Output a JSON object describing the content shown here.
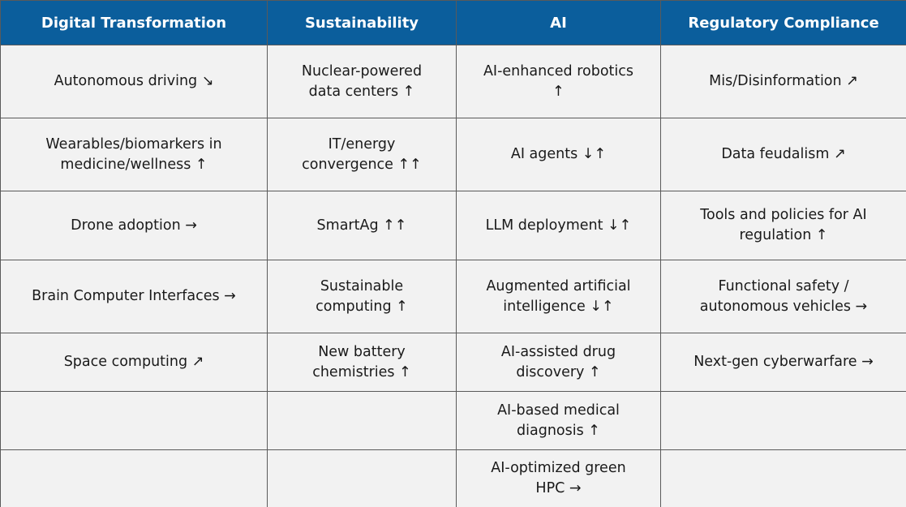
{
  "table": {
    "headers": [
      "Digital Transformation",
      "Sustainability",
      "AI",
      "Regulatory Compliance"
    ],
    "rows": [
      [
        [
          "Autonomous driving ↘"
        ],
        [
          "Nuclear-powered",
          "data centers ↑"
        ],
        [
          "AI-enhanced robotics",
          "↑"
        ],
        [
          "Mis/Disinformation ↗"
        ]
      ],
      [
        [
          "Wearables/biomarkers in",
          "medicine/wellness ↑"
        ],
        [
          "IT/energy",
          "convergence ↑↑"
        ],
        [
          "AI agents ↓↑"
        ],
        [
          "Data feudalism ↗"
        ]
      ],
      [
        [
          "Drone adoption →"
        ],
        [
          "SmartAg ↑↑"
        ],
        [
          "LLM deployment ↓↑"
        ],
        [
          "Tools and policies for AI",
          "regulation  ↑"
        ]
      ],
      [
        [
          "Brain Computer Interfaces →"
        ],
        [
          "Sustainable",
          "computing ↑"
        ],
        [
          "Augmented artificial",
          "intelligence ↓↑"
        ],
        [
          "Functional safety /",
          "autonomous vehicles →"
        ]
      ],
      [
        [
          "Space computing ↗"
        ],
        [
          "New battery",
          "chemistries ↑"
        ],
        [
          "AI-assisted drug",
          "discovery ↑"
        ],
        [
          "Next-gen cyberwarfare →"
        ]
      ],
      [
        [],
        [],
        [
          "AI-based medical",
          "diagnosis ↑"
        ],
        []
      ],
      [
        [],
        [],
        [
          "AI-optimized green",
          "HPC →"
        ],
        []
      ]
    ]
  }
}
